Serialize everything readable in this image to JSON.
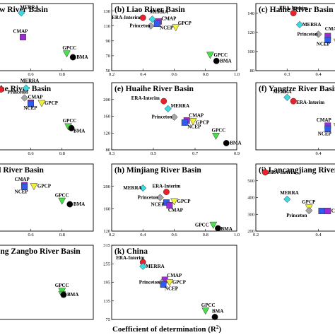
{
  "figure": {
    "xlabel": "Coefficient of determination (R",
    "xlabel_sup": "2",
    "xlabel_end": ")"
  },
  "colors": {
    "ERA-Interim": "#e8212a",
    "MERRA": "#3ed8e0",
    "Princeton": "#a6a6a6",
    "CMAP": "#9b2bd6",
    "NCEP": "#2e5bf0",
    "GPCP": "#f2f23a",
    "GPCC": "#49e04b",
    "BMA": "#000000"
  },
  "markers": {
    "ERA-Interim": "circle",
    "MERRA": "diamond",
    "Princeton": "diamond",
    "CMAP": "square",
    "NCEP": "square",
    "GPCP": "triangle-down",
    "GPCC": "triangle-down",
    "BMA": "circle"
  },
  "chart_data": [
    {
      "id": "a",
      "type": "scatter",
      "title": "(a) Yellow River Basin",
      "col": 0,
      "row": 0,
      "xlim": [
        0.2,
        1.0
      ],
      "ylim": [
        0,
        300
      ],
      "xticks": [
        {
          "v": 0.6,
          "l": "0.6"
        },
        {
          "v": 0.8,
          "l": "0.8"
        }
      ],
      "yticks": [],
      "points": [
        {
          "name": "MERRA",
          "label": "MERRA",
          "x": 0.54,
          "y": 258,
          "ldx": -2,
          "ldy": -6
        },
        {
          "name": "CMAP",
          "label": "CMAP",
          "x": 0.55,
          "y": 150,
          "ldx": -14,
          "ldy": -6
        },
        {
          "name": "GPCC",
          "label": "GPCC",
          "x": 0.83,
          "y": 76,
          "ldx": -6,
          "ldy": -6
        },
        {
          "name": "BMA",
          "label": "BMA",
          "x": 0.87,
          "y": 60,
          "ldx": 5,
          "ldy": 2
        }
      ]
    },
    {
      "id": "b",
      "type": "scatter",
      "title": "(b) Liao River Basin",
      "col": 1,
      "row": 0,
      "xlim": [
        0.2,
        1.0
      ],
      "ylim": [
        50,
        140
      ],
      "xticks": [
        {
          "v": 0.2,
          "l": "0.2"
        },
        {
          "v": 0.4,
          "l": "0.4"
        },
        {
          "v": 0.6,
          "l": "0.6"
        },
        {
          "v": 0.8,
          "l": "0.8"
        },
        {
          "v": 1.0,
          "l": "1.0"
        }
      ],
      "yticks": [
        {
          "v": 50,
          "l": "50"
        },
        {
          "v": 70,
          "l": "70"
        },
        {
          "v": 90,
          "l": "90"
        },
        {
          "v": 110,
          "l": "110"
        },
        {
          "v": 130,
          "l": "130"
        }
      ],
      "points": [
        {
          "name": "ERA-Interim",
          "label": "ERA-Interim",
          "x": 0.4,
          "y": 121,
          "ldx": -44,
          "ldy": 2
        },
        {
          "name": "MERRA",
          "label": "MERRA",
          "x": 0.46,
          "y": 119,
          "ldx": -4,
          "ldy": -8
        },
        {
          "name": "Princeton",
          "label": "Princeton",
          "x": 0.45,
          "y": 110,
          "ldx": -30,
          "ldy": 2
        },
        {
          "name": "CMAP",
          "label": "CMAP",
          "x": 0.5,
          "y": 116,
          "ldx": 4,
          "ldy": -2
        },
        {
          "name": "NCEP",
          "label": "NCEP",
          "x": 0.49,
          "y": 113,
          "ldx": 0,
          "ldy": 8
        },
        {
          "name": "GPCP",
          "label": "GPCP",
          "x": 0.61,
          "y": 108,
          "ldx": 3,
          "ldy": -4
        },
        {
          "name": "GPCC",
          "label": "GPCC",
          "x": 0.83,
          "y": 71,
          "ldx": 5,
          "ldy": 2
        },
        {
          "name": "BMA",
          "label": "BMA",
          "x": 0.87,
          "y": 63,
          "ldx": 5,
          "ldy": 2
        }
      ]
    },
    {
      "id": "c",
      "type": "scatter",
      "title": "(c) Haihe River Basin",
      "col": 2,
      "row": 0,
      "xlim": [
        0.2,
        0.6
      ],
      "ylim": [
        80,
        150
      ],
      "xticks": [
        {
          "v": 0.3,
          "l": "0.3"
        },
        {
          "v": 0.4,
          "l": "0.4"
        }
      ],
      "yticks": [
        {
          "v": 80,
          "l": "80"
        },
        {
          "v": 100,
          "l": "100"
        },
        {
          "v": 120,
          "l": "120"
        },
        {
          "v": 140,
          "l": "140"
        }
      ],
      "points": [
        {
          "name": "ERA-Interim",
          "label": "ERA-Interim",
          "x": 0.32,
          "y": 140,
          "ldx": -20,
          "ldy": -5
        },
        {
          "name": "MERRA",
          "label": "MERRA",
          "x": 0.34,
          "y": 128,
          "ldx": 4,
          "ldy": 2
        },
        {
          "name": "Princeton",
          "label": "Princeton",
          "x": 0.4,
          "y": 118,
          "ldx": -30,
          "ldy": 2
        },
        {
          "name": "CMAP",
          "label": "CMAP",
          "x": 0.43,
          "y": 116,
          "ldx": -4,
          "ldy": -8
        },
        {
          "name": "NCEP",
          "label": "NCEP",
          "x": 0.43,
          "y": 112,
          "ldx": -16,
          "ldy": 8
        },
        {
          "name": "GPCP",
          "label": "GPCP",
          "x": 0.46,
          "y": 110,
          "ldx": 3,
          "ldy": 4
        }
      ]
    },
    {
      "id": "d",
      "type": "scatter",
      "title": "(d) Huaihe River Basin",
      "col": 0,
      "row": 1,
      "xlim": [
        0.2,
        1.0
      ],
      "ylim": [
        0,
        300
      ],
      "xticks": [
        {
          "v": 0.6,
          "l": "0.6"
        },
        {
          "v": 0.8,
          "l": "0.8"
        }
      ],
      "yticks": [],
      "points": [
        {
          "name": "ERA-Interim",
          "label": "",
          "x": 0.41,
          "y": 270
        },
        {
          "name": "MERRA",
          "label": "MERRA",
          "x": 0.57,
          "y": 276,
          "ldx": -8,
          "ldy": -8
        },
        {
          "name": "Princeton",
          "label": "Princeton",
          "x": 0.56,
          "y": 232,
          "ldx": -24,
          "ldy": -6
        },
        {
          "name": "CMAP",
          "label": "CMAP",
          "x": 0.6,
          "y": 210,
          "ldx": -4,
          "ldy": -6
        },
        {
          "name": "NCEP",
          "label": "NCEP",
          "x": 0.6,
          "y": 205,
          "ldx": -10,
          "ldy": 8
        },
        {
          "name": "GPCP",
          "label": "GPCP",
          "x": 0.67,
          "y": 208,
          "ldx": 4,
          "ldy": 2
        },
        {
          "name": "GPCC",
          "label": "GPCC",
          "x": 0.84,
          "y": 104,
          "ldx": -8,
          "ldy": -6
        },
        {
          "name": "BMA",
          "label": "BMA",
          "x": 0.86,
          "y": 97,
          "ldx": 3,
          "ldy": 6
        }
      ]
    },
    {
      "id": "e",
      "type": "scatter",
      "title": "(e) Huaihe River Basin",
      "col": 1,
      "row": 1,
      "xlim": [
        0.3,
        0.9
      ],
      "ylim": [
        80,
        240
      ],
      "xticks": [
        {
          "v": 0.3,
          "l": "0.3"
        },
        {
          "v": 0.5,
          "l": "0.5"
        },
        {
          "v": 0.7,
          "l": "0.7"
        },
        {
          "v": 0.9,
          "l": "0.9"
        }
      ],
      "yticks": [
        {
          "v": 80,
          "l": "80"
        },
        {
          "v": 120,
          "l": "120"
        },
        {
          "v": 160,
          "l": "160"
        },
        {
          "v": 200,
          "l": "200"
        }
      ],
      "points": [
        {
          "name": "ERA-Interim",
          "label": "ERA-Interim",
          "x": 0.55,
          "y": 196,
          "ldx": -46,
          "ldy": -2
        },
        {
          "name": "MERRA",
          "label": "MERRA",
          "x": 0.57,
          "y": 178,
          "ldx": 4,
          "ldy": -2
        },
        {
          "name": "Princeton",
          "label": "Princeton",
          "x": 0.6,
          "y": 158,
          "ldx": -32,
          "ldy": 2
        },
        {
          "name": "CMAP",
          "label": "CMAP",
          "x": 0.66,
          "y": 150,
          "ldx": 3,
          "ldy": -5
        },
        {
          "name": "NCEP",
          "label": "NCEP",
          "x": 0.65,
          "y": 145,
          "ldx": 0,
          "ldy": 8
        },
        {
          "name": "GPCP",
          "label": "GPCP",
          "x": 0.69,
          "y": 148,
          "ldx": 4,
          "ldy": 4
        },
        {
          "name": "GPCC",
          "label": "GPCC",
          "x": 0.8,
          "y": 113,
          "ldx": -6,
          "ldy": -6
        },
        {
          "name": "BMA",
          "label": "BMA",
          "x": 0.85,
          "y": 96,
          "ldx": 5,
          "ldy": 2
        }
      ]
    },
    {
      "id": "f",
      "type": "scatter",
      "title": "(f) Yangtze River Basin",
      "col": 2,
      "row": 1,
      "xlim": [
        0.2,
        0.6
      ],
      "ylim": [
        140,
        460
      ],
      "xticks": [
        {
          "v": 0.4,
          "l": "0.4"
        }
      ],
      "yticks": [],
      "points": [
        {
          "name": "MERRA",
          "label": "MERRA",
          "x": 0.3,
          "y": 390,
          "ldx": -20,
          "ldy": -6
        },
        {
          "name": "ERA-Interim",
          "label": "ERA-Interim",
          "x": 0.32,
          "y": 372,
          "ldx": 4,
          "ldy": 4
        },
        {
          "name": "CMAP",
          "label": "CMAP",
          "x": 0.43,
          "y": 255,
          "ldx": -16,
          "ldy": -6
        },
        {
          "name": "GPCP",
          "label": "GPCP",
          "x": 0.46,
          "y": 252,
          "ldx": 3,
          "ldy": -2
        },
        {
          "name": "NCEP",
          "label": "NCEP",
          "x": 0.43,
          "y": 240,
          "ldx": -14,
          "ldy": 9
        }
      ]
    },
    {
      "id": "g",
      "type": "scatter",
      "title": "(g) Pearl River Basin",
      "col": 0,
      "row": 2,
      "xlim": [
        0.2,
        1.0
      ],
      "ylim": [
        0,
        300
      ],
      "xticks": [
        {
          "v": 0.6,
          "l": "0.6"
        },
        {
          "v": 0.8,
          "l": "0.8"
        }
      ],
      "yticks": [],
      "points": [
        {
          "name": "CMAP",
          "label": "CMAP",
          "x": 0.56,
          "y": 205,
          "ldx": -14,
          "ldy": -6
        },
        {
          "name": "NCEP",
          "label": "NCEP",
          "x": 0.56,
          "y": 198,
          "ldx": -14,
          "ldy": 9
        },
        {
          "name": "GPCP",
          "label": "GPCP",
          "x": 0.62,
          "y": 200,
          "ldx": 5,
          "ldy": 2
        },
        {
          "name": "GPCC",
          "label": "GPCC",
          "x": 0.8,
          "y": 135,
          "ldx": -10,
          "ldy": -6
        },
        {
          "name": "BMA",
          "label": "BMA",
          "x": 0.85,
          "y": 120,
          "ldx": 5,
          "ldy": 2
        }
      ]
    },
    {
      "id": "h",
      "type": "scatter",
      "title": "(h) Minjiang River Basin",
      "col": 1,
      "row": 2,
      "xlim": [
        0.2,
        1.0
      ],
      "ylim": [
        120,
        240
      ],
      "xticks": [
        {
          "v": 0.2,
          "l": "0.2"
        },
        {
          "v": 0.4,
          "l": "0.4"
        },
        {
          "v": 0.6,
          "l": "0.6"
        },
        {
          "v": 0.8,
          "l": "0.8"
        },
        {
          "v": 1.0,
          "l": "1.0"
        }
      ],
      "yticks": [
        {
          "v": 120,
          "l": "120"
        },
        {
          "v": 160,
          "l": "160"
        },
        {
          "v": 200,
          "l": "200"
        }
      ],
      "points": [
        {
          "name": "MERRA",
          "label": "MERRA",
          "x": 0.4,
          "y": 197,
          "ldx": -28,
          "ldy": 2
        },
        {
          "name": "ERA-Interim",
          "label": "ERA-Interim",
          "x": 0.55,
          "y": 190,
          "ldx": -20,
          "ldy": -6
        },
        {
          "name": "Princeton",
          "label": "Princeton",
          "x": 0.51,
          "y": 180,
          "ldx": -32,
          "ldy": 2
        },
        {
          "name": "NCEP",
          "label": "NCEP",
          "x": 0.55,
          "y": 171,
          "ldx": -22,
          "ldy": 5
        },
        {
          "name": "GPCP",
          "label": "GPCP",
          "x": 0.6,
          "y": 173,
          "ldx": 4,
          "ldy": 2
        },
        {
          "name": "CMAP",
          "label": "CMAP",
          "x": 0.57,
          "y": 166,
          "ldx": -2,
          "ldy": 9
        },
        {
          "name": "GPCC",
          "label": "GPCC",
          "x": 0.85,
          "y": 131,
          "ldx": -26,
          "ldy": 2
        },
        {
          "name": "BMA",
          "label": "BMA",
          "x": 0.88,
          "y": 125,
          "ldx": 4,
          "ldy": 3
        }
      ]
    },
    {
      "id": "i",
      "type": "scatter",
      "title": "(i) Lancangjiang River Basin",
      "col": 2,
      "row": 2,
      "xlim": [
        0.2,
        0.6
      ],
      "ylim": [
        200,
        600
      ],
      "xticks": [
        {
          "v": 0.2,
          "l": "0.2"
        },
        {
          "v": 0.4,
          "l": "0.4"
        }
      ],
      "yticks": [
        {
          "v": 200,
          "l": "200"
        },
        {
          "v": 300,
          "l": "300"
        },
        {
          "v": 400,
          "l": "400"
        },
        {
          "v": 500,
          "l": "500"
        }
      ],
      "points": [
        {
          "name": "ERA-Interim",
          "label": "ERA-Interim",
          "x": 0.23,
          "y": 550,
          "ldx": 4,
          "ldy": 2
        },
        {
          "name": "MERRA",
          "label": "MERRA",
          "x": 0.3,
          "y": 390,
          "ldx": -10,
          "ldy": -7
        },
        {
          "name": "GPCP",
          "label": "GPCP",
          "x": 0.37,
          "y": 340,
          "ldx": -10,
          "ldy": -6
        },
        {
          "name": "Princeton",
          "label": "Princeton",
          "x": 0.37,
          "y": 322,
          "ldx": -32,
          "ldy": 9
        },
        {
          "name": "NCEP",
          "label": "",
          "x": 0.41,
          "y": 320
        },
        {
          "name": "CMAP",
          "label": "CMAP",
          "x": 0.43,
          "y": 320,
          "ldx": 5,
          "ldy": 2
        }
      ]
    },
    {
      "id": "j",
      "type": "scatter",
      "title": "(j) Yarlung Zangbo River Basin",
      "col": 0,
      "row": 3,
      "xlim": [
        0.2,
        1.0
      ],
      "ylim": [
        0,
        300
      ],
      "xticks": [],
      "yticks": [],
      "points": [
        {
          "name": "GPCC",
          "label": "GPCC",
          "x": 0.8,
          "y": 115,
          "ldx": -10,
          "ldy": -6
        },
        {
          "name": "GPCC",
          "label": "",
          "x": 0.8,
          "y": 102
        },
        {
          "name": "BMA",
          "label": "BMA",
          "x": 0.81,
          "y": 100,
          "ldx": 5,
          "ldy": 2
        }
      ]
    },
    {
      "id": "k",
      "type": "scatter",
      "title": "(k) China",
      "col": 1,
      "row": 3,
      "xlim": [
        0.2,
        1.0
      ],
      "ylim": [
        75,
        315
      ],
      "xticks": [],
      "yticks": [
        {
          "v": 75,
          "l": "75"
        },
        {
          "v": 135,
          "l": "135"
        },
        {
          "v": 195,
          "l": "195"
        },
        {
          "v": 255,
          "l": "255"
        },
        {
          "v": 315,
          "l": "315"
        }
      ],
      "points": [
        {
          "name": "ERA-Interim",
          "label": "ERA-Interim",
          "x": 0.4,
          "y": 260,
          "ldx": -38,
          "ldy": -4
        },
        {
          "name": "MERRA",
          "label": "MERRA",
          "x": 0.4,
          "y": 247,
          "ldx": 4,
          "ldy": 2
        },
        {
          "name": "CMAP",
          "label": "CMAP",
          "x": 0.54,
          "y": 203,
          "ldx": 3,
          "ldy": -4
        },
        {
          "name": "Princeton",
          "label": "Princeton",
          "x": 0.52,
          "y": 195,
          "ldx": -32,
          "ldy": 2
        },
        {
          "name": "NCEP",
          "label": "NCEP",
          "x": 0.53,
          "y": 188,
          "ldx": 2,
          "ldy": 8
        },
        {
          "name": "GPCP",
          "label": "GPCP",
          "x": 0.57,
          "y": 195,
          "ldx": 4,
          "ldy": 2
        },
        {
          "name": "GPCC",
          "label": "GPCC",
          "x": 0.8,
          "y": 103,
          "ldx": -6,
          "ldy": -6
        },
        {
          "name": "BMA",
          "label": "BMA",
          "x": 0.86,
          "y": 83,
          "ldx": -4,
          "ldy": -6
        }
      ]
    }
  ]
}
